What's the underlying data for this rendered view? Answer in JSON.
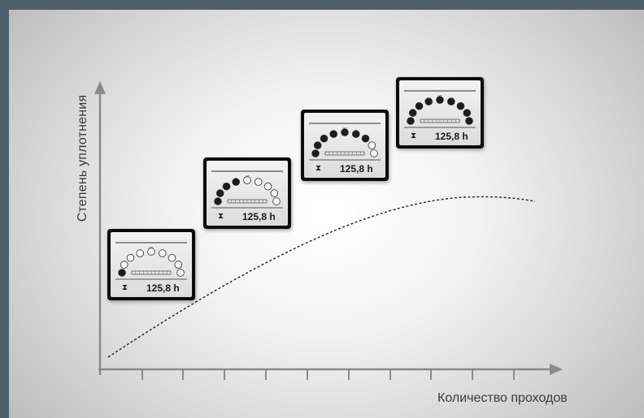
{
  "diagram": {
    "y_axis_label": "Степень уплотнения",
    "x_axis_label": "Количество проходов",
    "displays": [
      {
        "filled": 1,
        "total": 9,
        "hours": "125,8 h"
      },
      {
        "filled": 4,
        "total": 9,
        "hours": "125,8 h"
      },
      {
        "filled": 7,
        "total": 9,
        "hours": "125,8 h"
      },
      {
        "filled": 9,
        "total": 9,
        "hours": "125,8 h"
      }
    ]
  }
}
